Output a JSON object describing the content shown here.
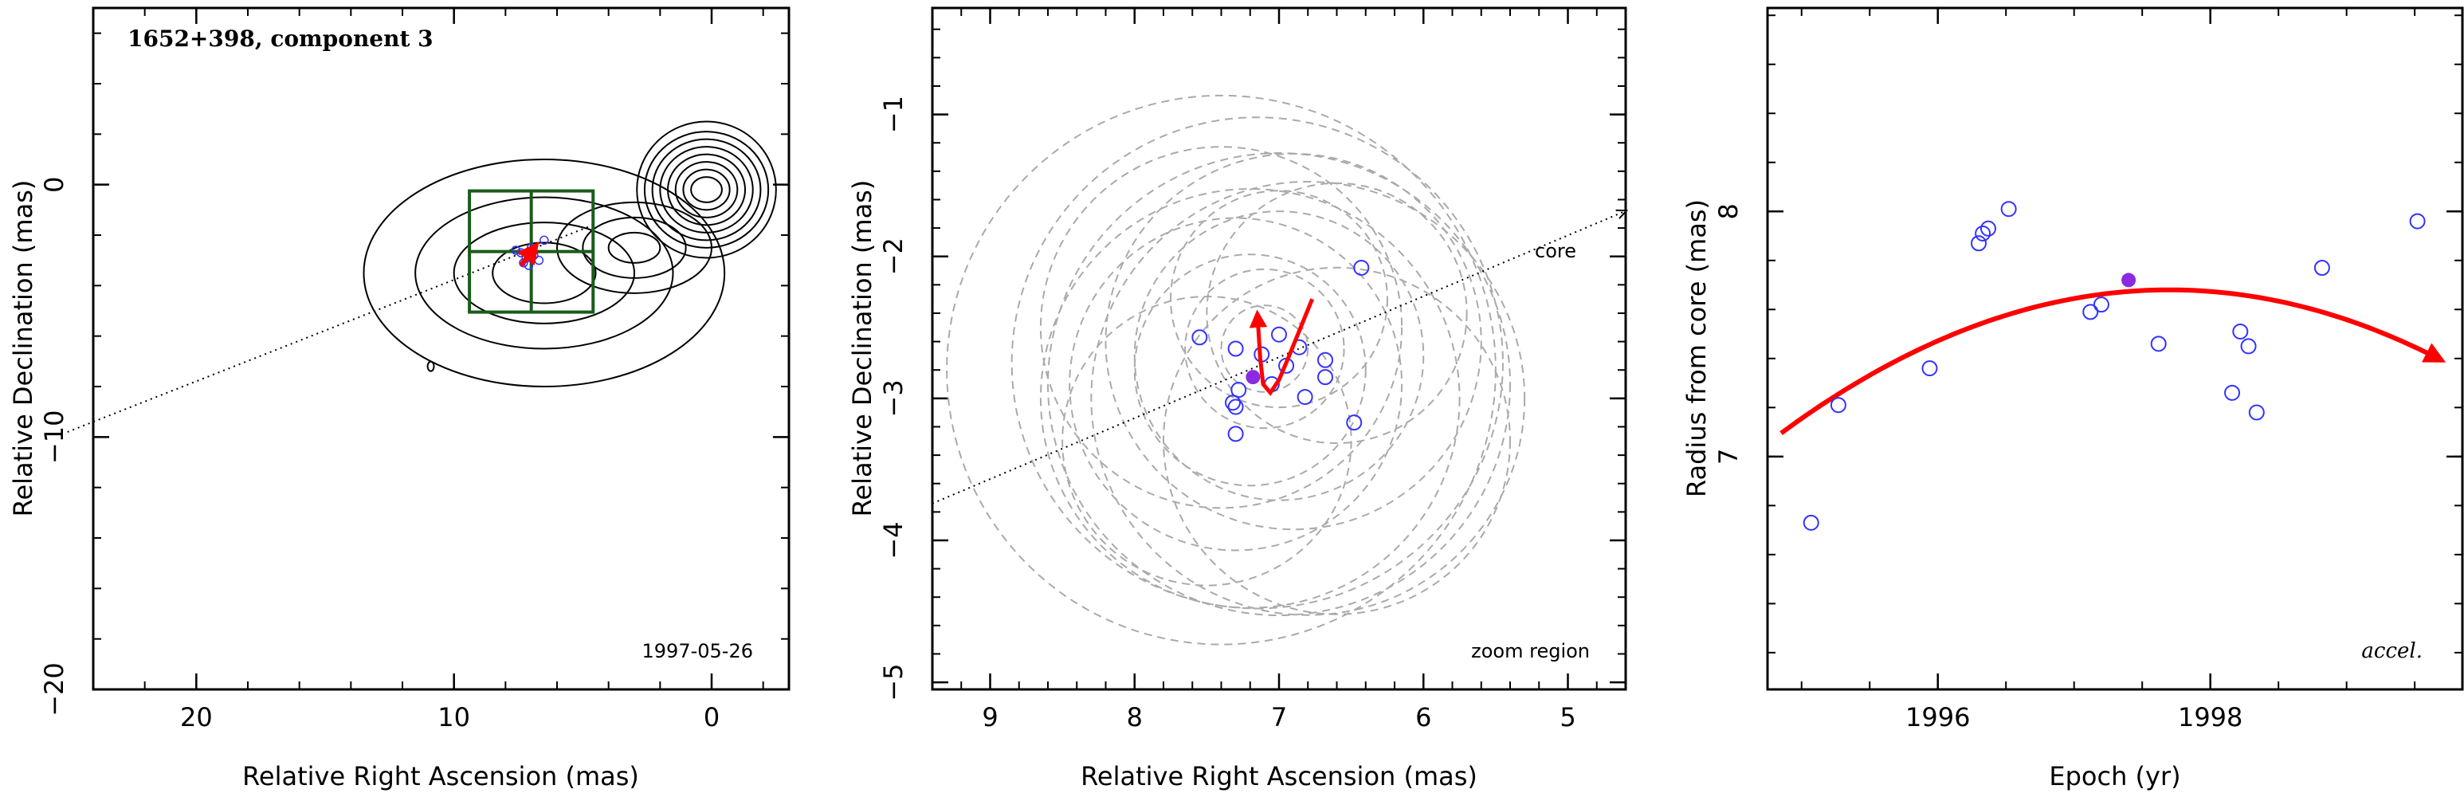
{
  "chart_data": [
    {
      "type": "scatter",
      "title": "1652+398, component 3",
      "xlabel": "Relative Right Ascension (mas)",
      "ylabel": "Relative Declination (mas)",
      "xlim": [
        24,
        -3
      ],
      "ylim": [
        -20,
        7
      ],
      "xticks": [
        20,
        10,
        0
      ],
      "yticks": [
        0,
        -10,
        -20
      ],
      "annotation": "1997-05-26",
      "points": [
        [
          7.6,
          -2.6
        ],
        [
          7.3,
          -3.1
        ],
        [
          7.0,
          -2.5
        ],
        [
          6.7,
          -3.0
        ],
        [
          6.5,
          -2.2
        ],
        [
          7.2,
          -2.9
        ],
        [
          7.4,
          -2.7
        ],
        [
          6.9,
          -2.8
        ],
        [
          7.1,
          -3.2
        ]
      ],
      "fitted_point": [
        7.1,
        -2.85
      ],
      "zoom_box": {
        "x": [
          9.4,
          4.6
        ],
        "y": [
          -0.25,
          -5.05
        ],
        "center": [
          7.0,
          -2.65
        ]
      },
      "direction_line": {
        "from": [
          25,
          -9.8
        ],
        "to": [
          4.6,
          -1.6
        ]
      },
      "contours": [
        {
          "center": [
            0.2,
            -0.2
          ],
          "rx": [
            0.6,
            0.9,
            1.2,
            1.5,
            1.8,
            2.1,
            2.4,
            2.7
          ],
          "ry": [
            0.5,
            0.8,
            1.1,
            1.4,
            1.7,
            2.0,
            2.3,
            2.7
          ]
        },
        {
          "center": [
            6.5,
            -3.5
          ],
          "rx": [
            2.0,
            3.5,
            5.0,
            7.0
          ],
          "ry": [
            1.2,
            2.0,
            3.0,
            4.5
          ]
        },
        {
          "center": [
            3.0,
            -2.5
          ],
          "rx": [
            1.0,
            2.0,
            3.0
          ],
          "ry": [
            0.6,
            1.2,
            1.8
          ]
        }
      ],
      "contour_isolated": [
        10.9,
        -7.2
      ]
    },
    {
      "type": "scatter",
      "xlabel": "Relative Right Ascension (mas)",
      "ylabel": "Relative Declination (mas)",
      "xlim": [
        9.4,
        4.6
      ],
      "ylim": [
        -5.05,
        -0.25
      ],
      "xticks": [
        9,
        8,
        7,
        6,
        5
      ],
      "yticks": [
        -1,
        -2,
        -3,
        -4,
        -5
      ],
      "annotation": "zoom region",
      "core_label": "core",
      "points": [
        [
          7.55,
          -2.57
        ],
        [
          7.3,
          -2.65
        ],
        [
          7.12,
          -2.69
        ],
        [
          7.0,
          -2.55
        ],
        [
          6.95,
          -2.77
        ],
        [
          6.86,
          -2.64
        ],
        [
          7.28,
          -2.94
        ],
        [
          7.32,
          -3.03
        ],
        [
          7.3,
          -3.06
        ],
        [
          7.3,
          -3.25
        ],
        [
          7.05,
          -2.9
        ],
        [
          6.82,
          -2.99
        ],
        [
          6.68,
          -2.73
        ],
        [
          6.68,
          -2.85
        ],
        [
          6.48,
          -3.17
        ],
        [
          6.43,
          -2.08
        ]
      ],
      "fitted_point": [
        7.18,
        -2.85
      ],
      "error_ellipses": [
        {
          "center": [
            7.1,
            -2.65
          ],
          "r": 0.3
        },
        {
          "center": [
            7.1,
            -2.65
          ],
          "r": 0.55
        },
        {
          "center": [
            7.2,
            -2.8
          ],
          "r": 0.8
        },
        {
          "center": [
            7.0,
            -2.7
          ],
          "r": 1.0
        },
        {
          "center": [
            7.3,
            -2.9
          ],
          "r": 1.15
        },
        {
          "center": [
            6.9,
            -2.6
          ],
          "r": 1.3
        },
        {
          "center": [
            7.2,
            -3.0
          ],
          "r": 1.45
        },
        {
          "center": [
            7.0,
            -2.9
          ],
          "r": 1.6
        },
        {
          "center": [
            7.15,
            -2.75
          ],
          "r": 1.7
        },
        {
          "center": [
            7.4,
            -2.8
          ],
          "r": 1.9
        },
        {
          "center": [
            6.8,
            -3.0
          ],
          "r": 1.5
        },
        {
          "center": [
            7.4,
            -2.5
          ],
          "r": 1.25
        },
        {
          "center": [
            6.6,
            -2.4
          ],
          "r": 0.9
        },
        {
          "center": [
            6.6,
            -3.3
          ],
          "r": 1.2
        },
        {
          "center": [
            7.5,
            -3.3
          ],
          "r": 1.0
        },
        {
          "center": [
            7.0,
            -2.3
          ],
          "r": 0.75
        }
      ],
      "direction_line": {
        "from": [
          9.4,
          -3.74
        ],
        "to": [
          4.6,
          -1.68
        ]
      },
      "trajectory": [
        [
          6.77,
          -2.3
        ],
        [
          6.85,
          -2.5
        ],
        [
          6.93,
          -2.7
        ],
        [
          7.0,
          -2.87
        ],
        [
          7.06,
          -2.96
        ],
        [
          7.11,
          -2.9
        ],
        [
          7.13,
          -2.72
        ],
        [
          7.15,
          -2.4
        ]
      ]
    },
    {
      "type": "scatter",
      "xlabel": "Epoch (yr)",
      "ylabel": "Radius from core (mas)",
      "xlim": [
        1994.75,
        1999.85
      ],
      "ylim": [
        6.05,
        8.83
      ],
      "xticks": [
        1996,
        1998
      ],
      "yticks": [
        7,
        8
      ],
      "annotation": "accel.",
      "points": [
        [
          1995.07,
          6.73
        ],
        [
          1995.27,
          7.21
        ],
        [
          1995.94,
          7.36
        ],
        [
          1996.3,
          7.87
        ],
        [
          1996.33,
          7.91
        ],
        [
          1996.37,
          7.93
        ],
        [
          1996.52,
          8.01
        ],
        [
          1997.12,
          7.59
        ],
        [
          1997.2,
          7.62
        ],
        [
          1997.62,
          7.46
        ],
        [
          1998.16,
          7.26
        ],
        [
          1998.22,
          7.51
        ],
        [
          1998.28,
          7.45
        ],
        [
          1998.34,
          7.18
        ],
        [
          1998.82,
          7.77
        ],
        [
          1999.52,
          7.96
        ]
      ],
      "fitted_point": [
        1997.4,
        7.72
      ],
      "fit_curve": {
        "t0": 1997.7,
        "peak": 7.68,
        "curvature": 0.072,
        "range": [
          1994.85,
          1999.7
        ]
      }
    }
  ]
}
